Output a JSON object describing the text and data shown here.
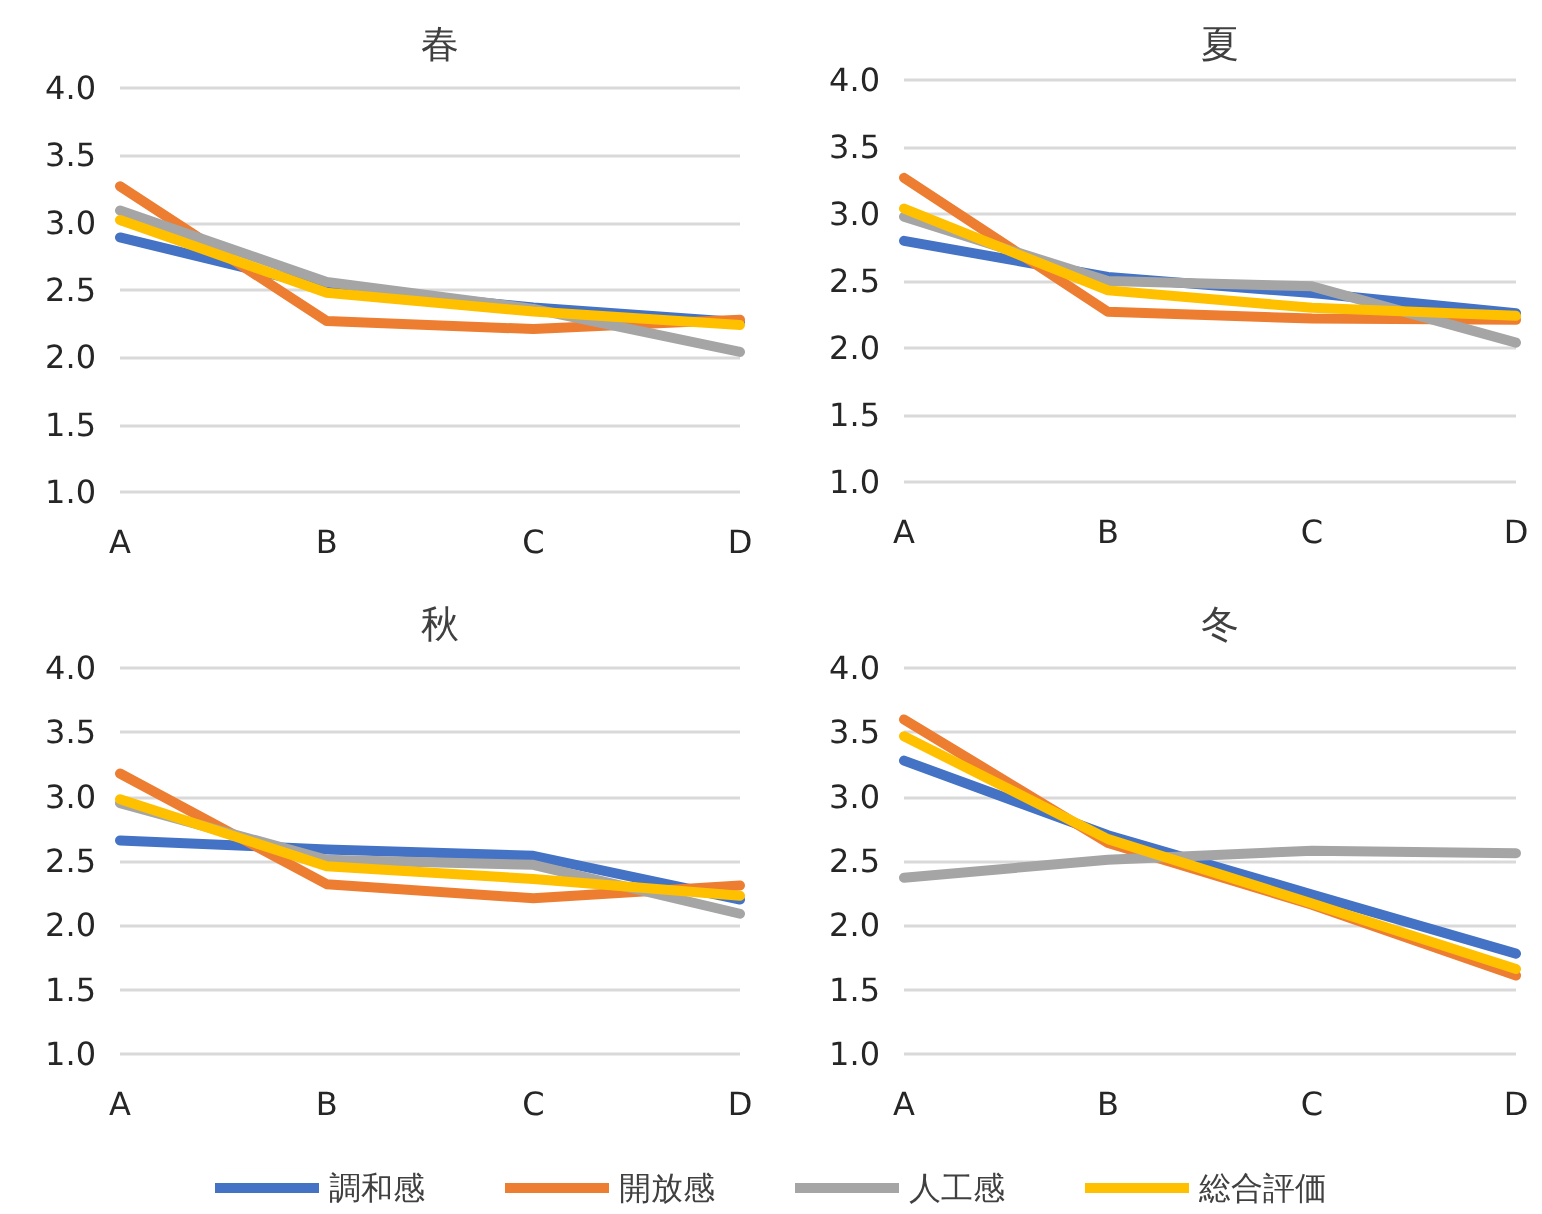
{
  "chart_data": [
    {
      "type": "line",
      "title": "春",
      "categories": [
        "A",
        "B",
        "C",
        "D"
      ],
      "ylim": [
        1,
        4
      ],
      "yticks": [
        {
          "value": 1,
          "label": "1.0"
        },
        {
          "value": 1.5,
          "label": "1.5"
        },
        {
          "value": 2,
          "label": "2.0"
        },
        {
          "value": 2.5,
          "label": "2.5"
        },
        {
          "value": 3,
          "label": "3.0"
        },
        {
          "value": 3.5,
          "label": "3.5"
        },
        {
          "value": 4,
          "label": "4.0"
        }
      ],
      "grid": "y",
      "marker": "none",
      "series": [
        {
          "color": "#4472c4",
          "values": [
            2.89,
            2.52,
            2.37,
            2.26
          ]
        },
        {
          "color": "#ed7d31",
          "values": [
            3.27,
            2.27,
            2.21,
            2.28
          ]
        },
        {
          "color": "#a5a5a5",
          "values": [
            3.09,
            2.56,
            2.36,
            2.04
          ]
        },
        {
          "color": "#ffc000",
          "values": [
            3.02,
            2.48,
            2.34,
            2.24
          ]
        }
      ]
    },
    {
      "type": "line",
      "title": "夏",
      "categories": [
        "A",
        "B",
        "C",
        "D"
      ],
      "ylim": [
        1,
        4
      ],
      "yticks": [
        {
          "value": 1,
          "label": "1.0"
        },
        {
          "value": 1.5,
          "label": "1.5"
        },
        {
          "value": 2,
          "label": "2.0"
        },
        {
          "value": 2.5,
          "label": "2.5"
        },
        {
          "value": 3,
          "label": "3.0"
        },
        {
          "value": 3.5,
          "label": "3.5"
        },
        {
          "value": 4,
          "label": "4.0"
        }
      ],
      "grid": "y",
      "marker": "none",
      "series": [
        {
          "color": "#4472c4",
          "values": [
            2.8,
            2.53,
            2.41,
            2.26
          ]
        },
        {
          "color": "#ed7d31",
          "values": [
            3.27,
            2.27,
            2.22,
            2.21
          ]
        },
        {
          "color": "#a5a5a5",
          "values": [
            2.98,
            2.5,
            2.46,
            2.04
          ]
        },
        {
          "color": "#ffc000",
          "values": [
            3.04,
            2.43,
            2.3,
            2.24
          ]
        }
      ]
    },
    {
      "type": "line",
      "title": "秋",
      "categories": [
        "A",
        "B",
        "C",
        "D"
      ],
      "ylim": [
        1,
        4
      ],
      "yticks": [
        {
          "value": 1,
          "label": "1.0"
        },
        {
          "value": 1.5,
          "label": "1.5"
        },
        {
          "value": 2,
          "label": "2.0"
        },
        {
          "value": 2.5,
          "label": "2.5"
        },
        {
          "value": 3,
          "label": "3.0"
        },
        {
          "value": 3.5,
          "label": "3.5"
        },
        {
          "value": 4,
          "label": "4.0"
        }
      ],
      "grid": "y",
      "marker": "none",
      "legend": "bottom",
      "series": [
        {
          "name": "調和感",
          "color": "#4472c4",
          "values": [
            2.66,
            2.59,
            2.54,
            2.2
          ]
        },
        {
          "name": "開放感",
          "color": "#ed7d31",
          "values": [
            3.18,
            2.32,
            2.21,
            2.31
          ]
        },
        {
          "name": "人工感",
          "color": "#a5a5a5",
          "values": [
            2.95,
            2.51,
            2.47,
            2.09
          ]
        },
        {
          "name": "総合評価",
          "color": "#ffc000",
          "values": [
            2.98,
            2.46,
            2.36,
            2.23
          ]
        }
      ]
    },
    {
      "type": "line",
      "title": "冬",
      "categories": [
        "A",
        "B",
        "C",
        "D"
      ],
      "ylim": [
        1,
        4
      ],
      "yticks": [
        {
          "value": 1,
          "label": "1.0"
        },
        {
          "value": 1.5,
          "label": "1.5"
        },
        {
          "value": 2,
          "label": "2.0"
        },
        {
          "value": 2.5,
          "label": "2.5"
        },
        {
          "value": 3,
          "label": "3.0"
        },
        {
          "value": 3.5,
          "label": "3.5"
        },
        {
          "value": 4,
          "label": "4.0"
        }
      ],
      "grid": "y",
      "marker": "none",
      "series": [
        {
          "color": "#4472c4",
          "values": [
            3.28,
            2.7,
            2.24,
            1.78
          ]
        },
        {
          "color": "#ed7d31",
          "values": [
            3.6,
            2.64,
            2.16,
            1.61
          ]
        },
        {
          "color": "#a5a5a5",
          "values": [
            2.37,
            2.51,
            2.58,
            2.56
          ]
        },
        {
          "color": "#ffc000",
          "values": [
            3.47,
            2.67,
            2.17,
            1.66
          ]
        }
      ]
    }
  ]
}
